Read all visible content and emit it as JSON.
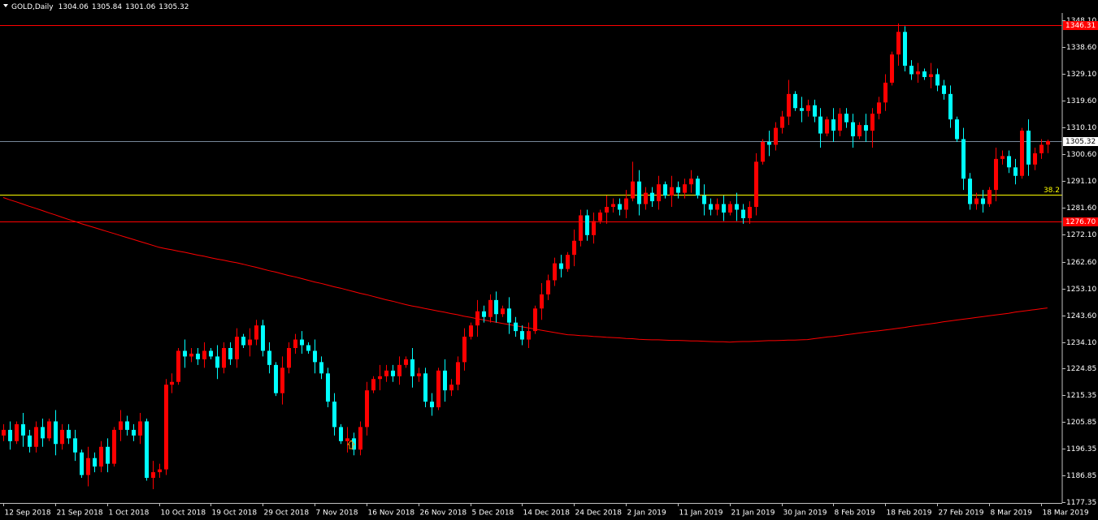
{
  "chart_data": {
    "type": "candlestick",
    "title": "GOLD,Daily",
    "categories": [
      "12 Sep 2018",
      null,
      null,
      null,
      null,
      null,
      null,
      null,
      "21 Sep 2018",
      null,
      null,
      null,
      null,
      null,
      null,
      null,
      "1 Oct 2018",
      null,
      null,
      null,
      null,
      null,
      null,
      null,
      "10 Oct 2018",
      null,
      null,
      null,
      null,
      null,
      null,
      null,
      "19 Oct 2018",
      null,
      null,
      null,
      null,
      null,
      null,
      null,
      "29 Oct 2018",
      null,
      null,
      null,
      null,
      null,
      null,
      null,
      "7 Nov 2018",
      null,
      null,
      null,
      null,
      null,
      null,
      null,
      "16 Nov 2018",
      null,
      null,
      null,
      null,
      null,
      null,
      null,
      "26 Nov 2018",
      null,
      null,
      null,
      null,
      null,
      null,
      null,
      "5 Dec 2018",
      null,
      null,
      null,
      null,
      null,
      null,
      null,
      "14 Dec 2018",
      null,
      null,
      null,
      null,
      null,
      null,
      null,
      "24 Dec 2018",
      null,
      null,
      null,
      null,
      null,
      null,
      null,
      "2 Jan 2019",
      null,
      null,
      null,
      null,
      null,
      null,
      null,
      "11 Jan 2019",
      null,
      null,
      null,
      null,
      null,
      null,
      null,
      "21 Jan 2019",
      null,
      null,
      null,
      null,
      null,
      null,
      null,
      "30 Jan 2019",
      null,
      null,
      null,
      null,
      null,
      null,
      null,
      "8 Feb 2019",
      null,
      null,
      null,
      null,
      null,
      null,
      null,
      "18 Feb 2019",
      null,
      null,
      null,
      null,
      null,
      null,
      null,
      "27 Feb 2019",
      null,
      null,
      null,
      null,
      null,
      null,
      null,
      "8 Mar 2019",
      null,
      null,
      null,
      null,
      null,
      null,
      null,
      "18 Mar 2019",
      null
    ],
    "open": [
      1201,
      1203,
      1199,
      1205,
      1201,
      1197,
      1204,
      1200,
      1206,
      1198,
      1203,
      1200,
      1195,
      1187,
      1193,
      1190,
      1197,
      1191,
      1203,
      1206,
      1203,
      1201,
      1206,
      1186,
      1188,
      1189,
      1219,
      1220,
      1231,
      1229,
      1230,
      1228,
      1231,
      1229,
      1225,
      1232,
      1228,
      1236,
      1233,
      1235,
      1240,
      1231,
      1226,
      1216,
      1225,
      1232,
      1235,
      1233,
      1231,
      1227,
      1223,
      1213,
      1204,
      1199,
      1200,
      1196,
      1204,
      1217,
      1221,
      1222,
      1224,
      1222,
      1226,
      1228,
      1222,
      1223,
      1213,
      1211,
      1224,
      1217,
      1219,
      1227,
      1236,
      1240,
      1245,
      1243,
      1249,
      1244,
      1246,
      1241,
      1238,
      1235,
      1238,
      1246,
      1251,
      1256,
      1262,
      1260,
      1265,
      1270,
      1279,
      1272,
      1277,
      1280,
      1282,
      1283,
      1281,
      1285,
      1291,
      1283,
      1287,
      1284,
      1290,
      1286,
      1289,
      1287,
      1290,
      1292,
      1286,
      1283,
      1281,
      1283,
      1280,
      1283,
      1281,
      1278,
      1282,
      1298,
      1305,
      1304,
      1310,
      1314,
      1322,
      1317,
      1316,
      1318,
      1314,
      1308,
      1313,
      1309,
      1315,
      1312,
      1307,
      1311,
      1309,
      1315,
      1319,
      1326,
      1336,
      1344,
      1332,
      1329,
      1330,
      1328,
      1329,
      1325,
      1322,
      1313,
      1306,
      1292,
      1283,
      1285,
      1283,
      1288,
      1299,
      1300,
      1296,
      1293,
      1309,
      1297,
      1301,
      1304.06
    ],
    "high": [
      1205,
      1206,
      1206,
      1209,
      1203,
      1206,
      1207,
      1207,
      1210,
      1205,
      1205,
      1203,
      1196,
      1197,
      1195,
      1199,
      1200,
      1204,
      1210,
      1208,
      1205,
      1209,
      1207,
      1192,
      1191,
      1221,
      1223,
      1232,
      1235,
      1232,
      1232,
      1234,
      1232,
      1233,
      1234,
      1234,
      1239,
      1237,
      1239,
      1242,
      1242,
      1234,
      1227,
      1229,
      1234,
      1237,
      1238,
      1234,
      1235,
      1229,
      1225,
      1216,
      1205,
      1204,
      1202,
      1206,
      1220,
      1222,
      1226,
      1226,
      1226,
      1229,
      1229,
      1232,
      1225,
      1225,
      1216,
      1225,
      1228,
      1221,
      1229,
      1239,
      1241,
      1249,
      1247,
      1251,
      1252,
      1247,
      1250,
      1243,
      1240,
      1241,
      1247,
      1255,
      1258,
      1264,
      1265,
      1266,
      1274,
      1281,
      1281,
      1280,
      1281,
      1286,
      1285,
      1285,
      1288,
      1298,
      1295,
      1289,
      1289,
      1293,
      1291,
      1293,
      1291,
      1292,
      1295,
      1293,
      1290,
      1285,
      1285,
      1286,
      1284,
      1287,
      1283,
      1284,
      1301,
      1306,
      1309,
      1312,
      1316,
      1327,
      1323,
      1321,
      1320,
      1320,
      1317,
      1314,
      1317,
      1317,
      1317,
      1315,
      1312,
      1315,
      1317,
      1321,
      1329,
      1337,
      1347,
      1346,
      1334,
      1333,
      1331,
      1333,
      1331,
      1327,
      1325,
      1314,
      1310,
      1294,
      1287,
      1288,
      1289,
      1303,
      1302,
      1302,
      1299,
      1310,
      1313,
      1303,
      1306,
      1305.84
    ],
    "low": [
      1199,
      1196,
      1198,
      1197,
      1195,
      1195,
      1197,
      1199,
      1194,
      1196,
      1198,
      1192,
      1186,
      1183,
      1188,
      1188,
      1188,
      1190,
      1199,
      1201,
      1199,
      1198,
      1185,
      1182,
      1186,
      1187,
      1216,
      1219,
      1225,
      1227,
      1226,
      1225,
      1228,
      1221,
      1223,
      1226,
      1225,
      1232,
      1229,
      1233,
      1229,
      1223,
      1215,
      1212,
      1223,
      1230,
      1230,
      1230,
      1223,
      1221,
      1211,
      1201,
      1198,
      1195,
      1194,
      1194,
      1201,
      1216,
      1217,
      1220,
      1220,
      1219,
      1225,
      1218,
      1220,
      1211,
      1208,
      1210,
      1213,
      1215,
      1217,
      1224,
      1235,
      1236,
      1241,
      1241,
      1241,
      1243,
      1237,
      1236,
      1233,
      1232,
      1237,
      1242,
      1249,
      1254,
      1257,
      1259,
      1261,
      1268,
      1270,
      1269,
      1276,
      1276,
      1280,
      1279,
      1278,
      1284,
      1279,
      1281,
      1282,
      1281,
      1285,
      1282,
      1285,
      1285,
      1287,
      1285,
      1279,
      1279,
      1279,
      1277,
      1279,
      1277,
      1276,
      1276,
      1279,
      1297,
      1300,
      1302,
      1308,
      1311,
      1316,
      1312,
      1314,
      1312,
      1303,
      1307,
      1305,
      1307,
      1310,
      1303,
      1306,
      1305,
      1303,
      1313,
      1316,
      1325,
      1332,
      1330,
      1327,
      1326,
      1327,
      1324,
      1323,
      1320,
      1310,
      1305,
      1288,
      1281,
      1281,
      1280,
      1282,
      1284,
      1297,
      1294,
      1290,
      1292,
      1293,
      1295,
      1299,
      1301.06
    ],
    "close": [
      1203,
      1199,
      1205,
      1201,
      1197,
      1204,
      1200,
      1206,
      1198,
      1203,
      1200,
      1195,
      1187,
      1193,
      1190,
      1197,
      1191,
      1203,
      1206,
      1203,
      1201,
      1206,
      1186,
      1188,
      1189,
      1219,
      1220,
      1231,
      1229,
      1230,
      1228,
      1231,
      1229,
      1225,
      1232,
      1228,
      1236,
      1233,
      1235,
      1240,
      1231,
      1226,
      1216,
      1225,
      1232,
      1235,
      1233,
      1231,
      1227,
      1223,
      1213,
      1204,
      1199,
      1200,
      1196,
      1204,
      1217,
      1221,
      1222,
      1224,
      1222,
      1226,
      1228,
      1222,
      1223,
      1213,
      1211,
      1224,
      1217,
      1219,
      1227,
      1236,
      1240,
      1245,
      1243,
      1249,
      1244,
      1246,
      1241,
      1238,
      1235,
      1238,
      1246,
      1251,
      1256,
      1262,
      1260,
      1265,
      1270,
      1279,
      1272,
      1277,
      1280,
      1282,
      1283,
      1281,
      1285,
      1291,
      1283,
      1287,
      1284,
      1290,
      1286,
      1289,
      1287,
      1290,
      1292,
      1286,
      1283,
      1281,
      1283,
      1280,
      1283,
      1281,
      1278,
      1282,
      1298,
      1305,
      1304,
      1310,
      1314,
      1322,
      1317,
      1316,
      1318,
      1314,
      1308,
      1313,
      1309,
      1315,
      1312,
      1307,
      1311,
      1309,
      1315,
      1319,
      1326,
      1336,
      1344,
      1332,
      1329,
      1330,
      1328,
      1329,
      1325,
      1322,
      1313,
      1306,
      1292,
      1283,
      1285,
      1283,
      1288,
      1299,
      1300,
      1296,
      1293,
      1309,
      1297,
      1301,
      1304,
      1305.32
    ],
    "up_color": "#ff0000",
    "down_color": "#00ffff",
    "ma": {
      "color": "#ff0000",
      "values": [
        1285.3,
        1284.5,
        1283.8,
        1283.0,
        1282.2,
        1281.5,
        1280.7,
        1279.9,
        1279.2,
        1278.4,
        1277.6,
        1276.9,
        1276.1,
        1275.4,
        1274.7,
        1274.0,
        1273.3,
        1272.6,
        1271.9,
        1271.2,
        1270.5,
        1269.8,
        1269.1,
        1268.4,
        1267.7,
        1267.2,
        1266.8,
        1266.3,
        1265.9,
        1265.4,
        1264.9,
        1264.5,
        1264.0,
        1263.5,
        1263.1,
        1262.6,
        1262.2,
        1261.7,
        1261.1,
        1260.6,
        1260.0,
        1259.4,
        1258.9,
        1258.3,
        1257.7,
        1257.2,
        1256.6,
        1256.0,
        1255.4,
        1254.9,
        1254.3,
        1253.7,
        1253.2,
        1252.6,
        1252.0,
        1251.4,
        1250.9,
        1250.3,
        1249.7,
        1249.1,
        1248.6,
        1248.0,
        1247.4,
        1246.9,
        1246.5,
        1246.0,
        1245.6,
        1245.1,
        1244.7,
        1244.2,
        1243.8,
        1243.3,
        1242.9,
        1242.4,
        1242.0,
        1241.5,
        1241.1,
        1240.7,
        1240.3,
        1239.9,
        1239.5,
        1239.1,
        1238.7,
        1238.3,
        1237.9,
        1237.5,
        1237.1,
        1236.7,
        1236.6,
        1236.4,
        1236.3,
        1236.1,
        1236.0,
        1235.8,
        1235.7,
        1235.6,
        1235.4,
        1235.3,
        1235.1,
        1235.0,
        1234.9,
        1234.9,
        1234.8,
        1234.7,
        1234.7,
        1234.6,
        1234.5,
        1234.5,
        1234.4,
        1234.3,
        1234.2,
        1234.2,
        1234.1,
        1234.2,
        1234.3,
        1234.3,
        1234.4,
        1234.5,
        1234.6,
        1234.6,
        1234.7,
        1234.8,
        1234.8,
        1234.9,
        1235.0,
        1235.3,
        1235.6,
        1235.9,
        1236.1,
        1236.4,
        1236.7,
        1237.0,
        1237.3,
        1237.6,
        1237.9,
        1238.1,
        1238.4,
        1238.7,
        1239.0,
        1239.3,
        1239.7,
        1240.0,
        1240.3,
        1240.6,
        1240.9,
        1241.3,
        1241.6,
        1241.9,
        1242.2,
        1242.5,
        1242.8,
        1243.1,
        1243.4,
        1243.7,
        1244.0,
        1244.3,
        1244.7,
        1245.0,
        1245.3,
        1245.6,
        1245.9,
        1246.2
      ]
    },
    "levels": [
      {
        "value": 1346.31,
        "label": "1346.31",
        "color": "#ff0000"
      },
      {
        "value": 1276.7,
        "label": "1276.70",
        "color": "#ff0000"
      }
    ],
    "bid": {
      "value": 1305.32,
      "label": "1305.32",
      "color": "#778899"
    },
    "fibo": {
      "value": 1286.2,
      "label": "38.2",
      "color": "#ffff00"
    },
    "ylim": [
      1177.1,
      1350.7
    ],
    "yticks": [
      {
        "value": 1348.1,
        "label": "1348.10"
      },
      {
        "value": 1338.6,
        "label": "1338.60"
      },
      {
        "value": 1329.1,
        "label": "1329.10"
      },
      {
        "value": 1319.6,
        "label": "1319.60"
      },
      {
        "value": 1310.1,
        "label": "1310.10"
      },
      {
        "value": 1300.6,
        "label": "1300.60"
      },
      {
        "value": 1291.1,
        "label": "1291.10"
      },
      {
        "value": 1281.6,
        "label": "1281.60"
      },
      {
        "value": 1272.1,
        "label": "1272.10"
      },
      {
        "value": 1262.6,
        "label": "1262.60"
      },
      {
        "value": 1253.1,
        "label": "1253.10"
      },
      {
        "value": 1243.6,
        "label": "1243.60"
      },
      {
        "value": 1234.1,
        "label": "1234.10"
      },
      1224.85,
      1215.35,
      1205.85,
      1196.35,
      1186.85,
      1177.35
    ]
  }
}
